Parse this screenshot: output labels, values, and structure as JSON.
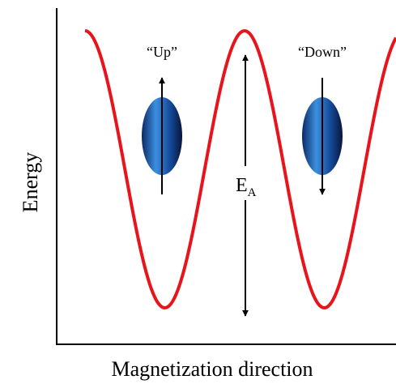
{
  "labels": {
    "up": "“Up”",
    "down": "“Down”"
  },
  "barrier": {
    "symbol": "E",
    "subscript": "A"
  },
  "axes": {
    "y_label": "Energy",
    "x_label": "Magnetization direction"
  }
}
